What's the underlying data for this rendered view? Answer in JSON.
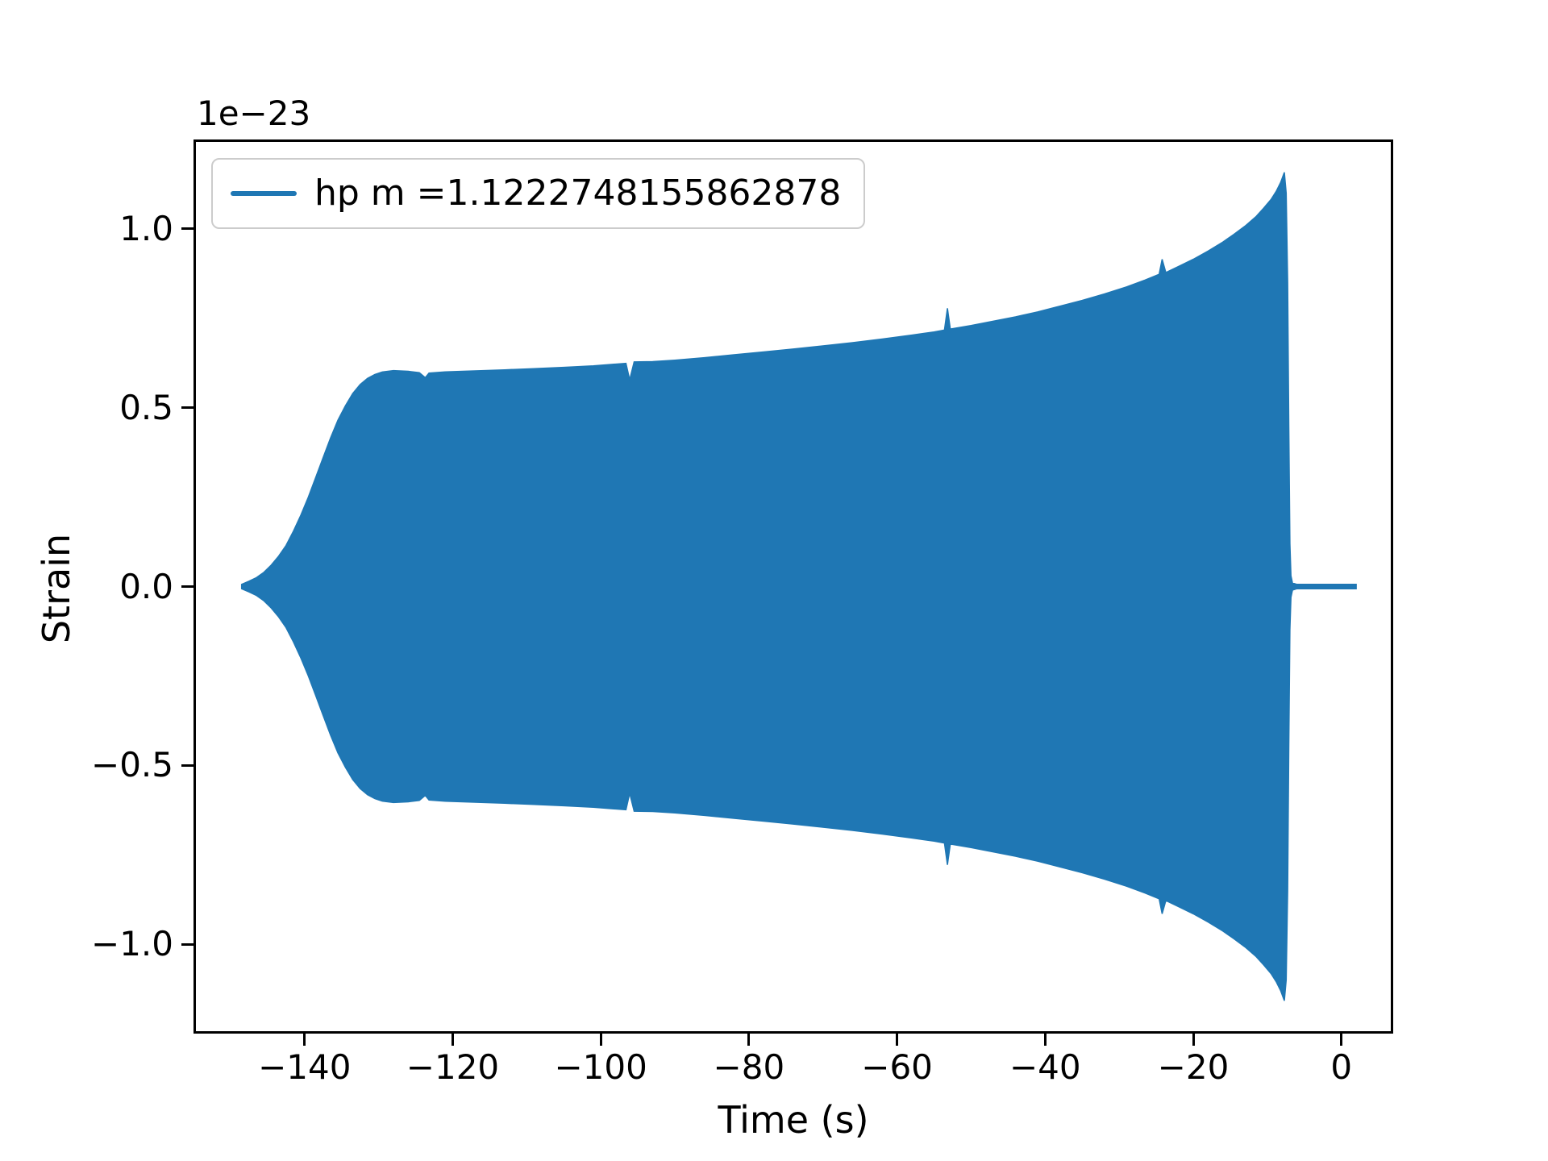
{
  "chart_data": {
    "type": "line",
    "title": "",
    "xlabel": "Time (s)",
    "ylabel": "Strain",
    "y_offset_text": "1e−23",
    "xlim": [
      -155,
      7
    ],
    "ylim": [
      -1.25,
      1.25
    ],
    "grid": false,
    "x_ticks": [
      -140,
      -120,
      -100,
      -80,
      -60,
      -40,
      -20,
      0
    ],
    "x_tick_labels": [
      "−140",
      "−120",
      "−100",
      "−80",
      "−60",
      "−40",
      "−20",
      "0"
    ],
    "y_ticks": [
      -1.0,
      -0.5,
      0.0,
      0.5,
      1.0
    ],
    "y_tick_labels": [
      "−1.0",
      "−0.5",
      "0.0",
      "0.5",
      "1.0"
    ],
    "legend": {
      "position": "upper left",
      "entries": [
        {
          "label": "hp m =1.1222748155862878",
          "color": "#1f77b4"
        }
      ]
    },
    "series": [
      {
        "name": "hp",
        "color": "#1f77b4",
        "description": "Gravitational-wave strain chirp; oscillations too dense to resolve, rendered as a filled symmetric ±envelope (units of 1e−23) ending in merger spike at t≈−7 s then flat ringdown near 0.",
        "envelope": [
          [
            -148.5,
            0.006
          ],
          [
            -147.5,
            0.015
          ],
          [
            -146.5,
            0.025
          ],
          [
            -145.5,
            0.04
          ],
          [
            -144.5,
            0.06
          ],
          [
            -143.5,
            0.085
          ],
          [
            -142.5,
            0.115
          ],
          [
            -141.5,
            0.155
          ],
          [
            -140.5,
            0.2
          ],
          [
            -139.5,
            0.25
          ],
          [
            -138.5,
            0.305
          ],
          [
            -137.5,
            0.36
          ],
          [
            -136.5,
            0.415
          ],
          [
            -135.5,
            0.465
          ],
          [
            -134.5,
            0.505
          ],
          [
            -133.5,
            0.54
          ],
          [
            -132.5,
            0.565
          ],
          [
            -131.5,
            0.582
          ],
          [
            -130.5,
            0.593
          ],
          [
            -129.5,
            0.6
          ],
          [
            -128,
            0.604
          ],
          [
            -126,
            0.602
          ],
          [
            -124.5,
            0.598
          ],
          [
            -123.7,
            0.584
          ],
          [
            -123.2,
            0.597
          ],
          [
            -121,
            0.6
          ],
          [
            -117,
            0.603
          ],
          [
            -113,
            0.606
          ],
          [
            -109,
            0.609
          ],
          [
            -105,
            0.613
          ],
          [
            -101,
            0.617
          ],
          [
            -98,
            0.622
          ],
          [
            -96.6,
            0.624
          ],
          [
            -96.1,
            0.578
          ],
          [
            -95.5,
            0.628
          ],
          [
            -93,
            0.629
          ],
          [
            -90,
            0.633
          ],
          [
            -86,
            0.64
          ],
          [
            -82,
            0.648
          ],
          [
            -78,
            0.656
          ],
          [
            -74,
            0.664
          ],
          [
            -70,
            0.673
          ],
          [
            -66,
            0.682
          ],
          [
            -62,
            0.692
          ],
          [
            -58,
            0.703
          ],
          [
            -55,
            0.712
          ],
          [
            -53.6,
            0.717
          ],
          [
            -53.2,
            0.778
          ],
          [
            -52.8,
            0.72
          ],
          [
            -50,
            0.73
          ],
          [
            -47,
            0.742
          ],
          [
            -44,
            0.754
          ],
          [
            -41,
            0.768
          ],
          [
            -38,
            0.784
          ],
          [
            -35,
            0.8
          ],
          [
            -32,
            0.818
          ],
          [
            -29,
            0.838
          ],
          [
            -26.5,
            0.857
          ],
          [
            -24.6,
            0.873
          ],
          [
            -24.2,
            0.915
          ],
          [
            -23.7,
            0.878
          ],
          [
            -22,
            0.895
          ],
          [
            -20,
            0.915
          ],
          [
            -18,
            0.938
          ],
          [
            -16,
            0.963
          ],
          [
            -14.5,
            0.985
          ],
          [
            -13,
            1.008
          ],
          [
            -11.5,
            1.035
          ],
          [
            -10.5,
            1.058
          ],
          [
            -9.5,
            1.082
          ],
          [
            -8.8,
            1.105
          ],
          [
            -8.2,
            1.13
          ],
          [
            -7.7,
            1.158
          ],
          [
            -7.45,
            1.1
          ],
          [
            -7.25,
            0.85
          ],
          [
            -7.1,
            0.45
          ],
          [
            -6.95,
            0.12
          ],
          [
            -6.8,
            0.03
          ],
          [
            -6.6,
            0.01
          ],
          [
            -6.0,
            0.006
          ],
          [
            2.0,
            0.006
          ]
        ]
      }
    ]
  }
}
